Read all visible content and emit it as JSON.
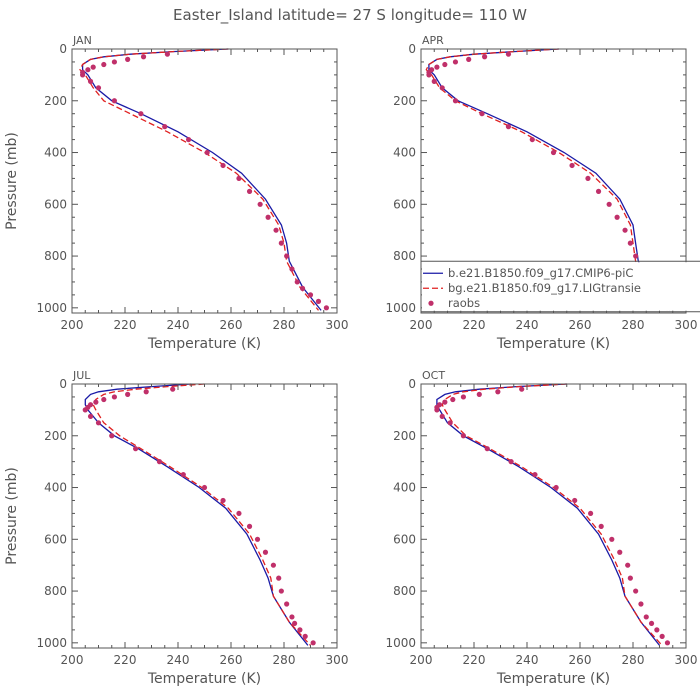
{
  "title": "Easter_Island   latitude= 27 S longitude= 110 W",
  "colors": {
    "model1": "#1a1aa6",
    "model2": "#e02020",
    "obs": "#c0306a",
    "axis": "#555555"
  },
  "legend": {
    "panel": 1,
    "entries": [
      {
        "label": "b.e21.B1850.f09_g17.CMIP6-piC",
        "style": "solid",
        "color": "#1a1aa6"
      },
      {
        "label": "bg.e21.B1850.f09_g17.LIGtransie",
        "style": "dashed",
        "color": "#e02020"
      },
      {
        "label": "raobs",
        "style": "dot",
        "color": "#c0306a"
      }
    ]
  },
  "chart_data": [
    {
      "type": "line",
      "panel_label": "JAN",
      "xlabel": "Temperature (K)",
      "ylabel": "Pressure (mb)",
      "xlim": [
        200,
        300
      ],
      "ylim": [
        1020,
        0
      ],
      "xticks": [
        200,
        220,
        240,
        260,
        280,
        300
      ],
      "yticks": [
        0,
        200,
        400,
        600,
        800,
        1000
      ],
      "series": [
        {
          "name": "b.e21.B1850.f09_g17.CMIP6-piC",
          "style": "solid",
          "color": "#1a1aa6",
          "x": [
            259,
            238,
            222,
            212,
            207,
            204,
            204,
            206,
            209,
            215,
            226,
            240,
            253,
            264,
            273,
            279,
            281,
            282,
            287,
            294
          ],
          "y": [
            0,
            10,
            20,
            30,
            40,
            60,
            80,
            100,
            150,
            200,
            250,
            320,
            400,
            480,
            580,
            680,
            750,
            820,
            920,
            1010
          ]
        },
        {
          "name": "bg.e21.B1850.f09_g17.LIGtransie",
          "style": "dashed",
          "color": "#e02020",
          "x": [
            259,
            238,
            222,
            212,
            207,
            204,
            203,
            205,
            208,
            212,
            222,
            236,
            250,
            262,
            272,
            278,
            280,
            281,
            286,
            293
          ],
          "y": [
            0,
            10,
            20,
            30,
            40,
            60,
            80,
            100,
            150,
            200,
            250,
            320,
            400,
            480,
            580,
            680,
            750,
            820,
            920,
            1010
          ]
        },
        {
          "name": "raobs",
          "style": "dot",
          "color": "#c0306a",
          "x": [
            236,
            227,
            221,
            216,
            212,
            208,
            206,
            204,
            204,
            207,
            210,
            216,
            226,
            235,
            244,
            251,
            257,
            263,
            267,
            271,
            274,
            277,
            279,
            281,
            283,
            285,
            287,
            290,
            293,
            296
          ],
          "y": [
            20,
            30,
            40,
            50,
            60,
            70,
            80,
            90,
            100,
            125,
            150,
            200,
            250,
            300,
            350,
            400,
            450,
            500,
            550,
            600,
            650,
            700,
            750,
            800,
            850,
            900,
            925,
            950,
            975,
            1000
          ]
        }
      ]
    },
    {
      "type": "line",
      "panel_label": "APR",
      "xlabel": "Temperature (K)",
      "ylabel": "",
      "xlim": [
        200,
        300
      ],
      "ylim": [
        1020,
        0
      ],
      "xticks": [
        200,
        220,
        240,
        260,
        280,
        300
      ],
      "yticks": [
        0,
        200,
        400,
        600,
        800,
        1000
      ],
      "series": [
        {
          "name": "b.e21.B1850.f09_g17.CMIP6-piC",
          "style": "solid",
          "color": "#1a1aa6",
          "x": [
            252,
            235,
            220,
            211,
            206,
            203,
            203,
            205,
            208,
            214,
            225,
            240,
            254,
            266,
            275,
            280,
            281,
            282,
            287,
            294
          ],
          "y": [
            0,
            10,
            20,
            30,
            40,
            60,
            80,
            100,
            150,
            200,
            250,
            320,
            400,
            480,
            580,
            680,
            750,
            820,
            920,
            1010
          ]
        },
        {
          "name": "bg.e21.B1850.f09_g17.LIGtransie",
          "style": "dashed",
          "color": "#e02020",
          "x": [
            252,
            235,
            220,
            211,
            206,
            203,
            202,
            204,
            207,
            213,
            223,
            238,
            252,
            264,
            274,
            279,
            280,
            281,
            286,
            293
          ],
          "y": [
            0,
            10,
            20,
            30,
            40,
            60,
            80,
            100,
            150,
            200,
            250,
            320,
            400,
            480,
            580,
            680,
            750,
            820,
            920,
            1010
          ]
        },
        {
          "name": "raobs",
          "style": "dot",
          "color": "#c0306a",
          "x": [
            233,
            224,
            218,
            213,
            209,
            206,
            204,
            203,
            203,
            205,
            208,
            213,
            223,
            233,
            242,
            250,
            257,
            263,
            267,
            271,
            274,
            277,
            279,
            281,
            283,
            285,
            287,
            290,
            293,
            296
          ],
          "y": [
            20,
            30,
            40,
            50,
            60,
            70,
            80,
            90,
            100,
            125,
            150,
            200,
            250,
            300,
            350,
            400,
            450,
            500,
            550,
            600,
            650,
            700,
            750,
            800,
            850,
            900,
            925,
            950,
            975,
            1000
          ]
        }
      ]
    },
    {
      "type": "line",
      "panel_label": "JUL",
      "xlabel": "Temperature (K)",
      "ylabel": "Pressure (mb)",
      "xlim": [
        200,
        300
      ],
      "ylim": [
        1020,
        0
      ],
      "xticks": [
        200,
        220,
        240,
        260,
        280,
        300
      ],
      "yticks": [
        0,
        200,
        400,
        600,
        800,
        1000
      ],
      "series": [
        {
          "name": "b.e21.B1850.f09_g17.CMIP6-piC",
          "style": "solid",
          "color": "#1a1aa6",
          "x": [
            245,
            230,
            217,
            210,
            207,
            205,
            205,
            206,
            210,
            216,
            225,
            236,
            248,
            258,
            266,
            271,
            274,
            276,
            282,
            289
          ],
          "y": [
            0,
            10,
            20,
            30,
            40,
            60,
            80,
            100,
            150,
            200,
            250,
            320,
            400,
            480,
            580,
            680,
            750,
            820,
            920,
            1010
          ]
        },
        {
          "name": "bg.e21.B1850.f09_g17.LIGtransie",
          "style": "dashed",
          "color": "#e02020",
          "x": [
            250,
            236,
            224,
            216,
            212,
            209,
            208,
            209,
            212,
            218,
            226,
            237,
            249,
            259,
            267,
            272,
            275,
            276,
            282,
            290
          ],
          "y": [
            0,
            10,
            20,
            30,
            40,
            60,
            80,
            100,
            150,
            200,
            250,
            320,
            400,
            480,
            580,
            680,
            750,
            820,
            920,
            1010
          ]
        },
        {
          "name": "raobs",
          "style": "dot",
          "color": "#c0306a",
          "x": [
            238,
            228,
            221,
            216,
            212,
            209,
            207,
            206,
            205,
            207,
            210,
            215,
            224,
            233,
            242,
            250,
            257,
            263,
            267,
            270,
            273,
            276,
            278,
            279,
            281,
            283,
            284,
            286,
            288,
            291
          ],
          "y": [
            20,
            30,
            40,
            50,
            60,
            70,
            80,
            90,
            100,
            125,
            150,
            200,
            250,
            300,
            350,
            400,
            450,
            500,
            550,
            600,
            650,
            700,
            750,
            800,
            850,
            900,
            925,
            950,
            975,
            1000
          ]
        }
      ]
    },
    {
      "type": "line",
      "panel_label": "OCT",
      "xlabel": "Temperature (K)",
      "ylabel": "",
      "xlim": [
        200,
        300
      ],
      "ylim": [
        1020,
        0
      ],
      "xticks": [
        200,
        220,
        240,
        260,
        280,
        300
      ],
      "yticks": [
        0,
        200,
        400,
        600,
        800,
        1000
      ],
      "series": [
        {
          "name": "b.e21.B1850.f09_g17.CMIP6-piC",
          "style": "solid",
          "color": "#1a1aa6",
          "x": [
            255,
            236,
            222,
            213,
            209,
            206,
            206,
            207,
            210,
            216,
            225,
            237,
            249,
            259,
            267,
            272,
            275,
            277,
            283,
            290
          ],
          "y": [
            0,
            10,
            20,
            30,
            40,
            60,
            80,
            100,
            150,
            200,
            250,
            320,
            400,
            480,
            580,
            680,
            750,
            820,
            920,
            1010
          ]
        },
        {
          "name": "bg.e21.B1850.f09_g17.LIGtransie",
          "style": "dashed",
          "color": "#e02020",
          "x": [
            255,
            237,
            224,
            216,
            212,
            209,
            208,
            209,
            212,
            217,
            226,
            238,
            250,
            260,
            268,
            273,
            276,
            277,
            283,
            291
          ],
          "y": [
            0,
            10,
            20,
            30,
            40,
            60,
            80,
            100,
            150,
            200,
            250,
            320,
            400,
            480,
            580,
            680,
            750,
            820,
            920,
            1010
          ]
        },
        {
          "name": "raobs",
          "style": "dot",
          "color": "#c0306a",
          "x": [
            238,
            229,
            222,
            216,
            212,
            209,
            207,
            206,
            206,
            208,
            211,
            216,
            225,
            234,
            243,
            251,
            258,
            264,
            268,
            272,
            275,
            278,
            279,
            281,
            283,
            285,
            287,
            289,
            291,
            293
          ],
          "y": [
            20,
            30,
            40,
            50,
            60,
            70,
            80,
            90,
            100,
            125,
            150,
            200,
            250,
            300,
            350,
            400,
            450,
            500,
            550,
            600,
            650,
            700,
            750,
            800,
            850,
            900,
            925,
            950,
            975,
            1000
          ]
        }
      ]
    }
  ]
}
